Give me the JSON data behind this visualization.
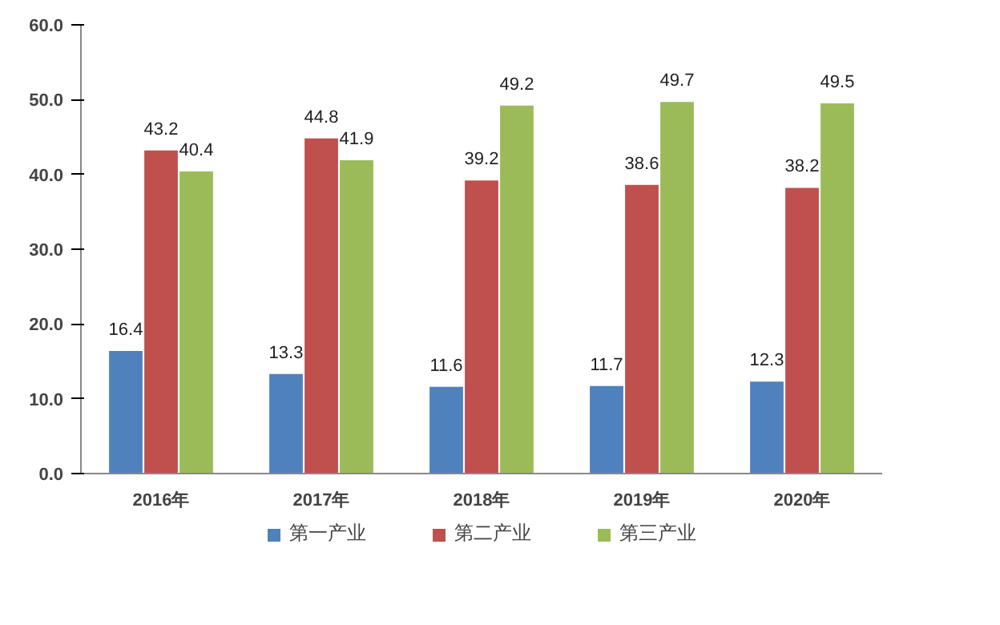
{
  "chart_data": {
    "type": "bar",
    "categories": [
      "2016年",
      "2017年",
      "2018年",
      "2019年",
      "2020年"
    ],
    "series": [
      {
        "name": "第一产业",
        "color": "#4f81bd",
        "values": [
          16.4,
          13.3,
          11.6,
          11.7,
          12.3
        ]
      },
      {
        "name": "第二产业",
        "color": "#c0504d",
        "values": [
          43.2,
          44.8,
          39.2,
          38.6,
          38.2
        ]
      },
      {
        "name": "第三产业",
        "color": "#9bbb59",
        "values": [
          40.4,
          41.9,
          49.2,
          49.7,
          49.5
        ]
      }
    ],
    "ylim": [
      0,
      60
    ],
    "yticks": [
      {
        "value": 0,
        "label": "0.0"
      },
      {
        "value": 10,
        "label": "10.0"
      },
      {
        "value": 20,
        "label": "20.0"
      },
      {
        "value": 30,
        "label": "30.0"
      },
      {
        "value": 40,
        "label": "40.0"
      },
      {
        "value": 50,
        "label": "50.0"
      },
      {
        "value": 60,
        "label": "60.0"
      }
    ],
    "data_labels": true,
    "grid": false,
    "legend": "bottom"
  }
}
